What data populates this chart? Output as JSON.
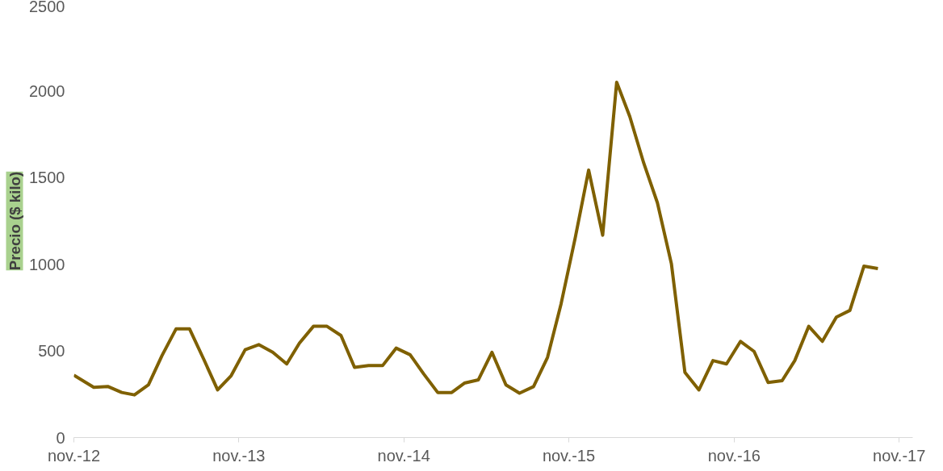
{
  "chart_data": {
    "type": "line",
    "ylabel": "Precio ($ kilo)",
    "x": [
      "2012-11-01",
      "2012-12-15",
      "2013-01-15",
      "2013-02-15",
      "2013-03-15",
      "2013-04-15",
      "2013-05-15",
      "2013-06-15",
      "2013-07-15",
      "2013-08-15",
      "2013-09-15",
      "2013-10-15",
      "2013-11-15",
      "2013-12-15",
      "2014-01-15",
      "2014-02-15",
      "2014-03-15",
      "2014-04-15",
      "2014-05-15",
      "2014-06-15",
      "2014-07-15",
      "2014-08-15",
      "2014-09-15",
      "2014-10-15",
      "2014-11-15",
      "2014-12-15",
      "2015-01-15",
      "2015-02-15",
      "2015-03-15",
      "2015-04-15",
      "2015-05-15",
      "2015-06-15",
      "2015-07-15",
      "2015-08-15",
      "2015-09-15",
      "2015-10-15",
      "2015-11-15",
      "2015-12-15",
      "2016-01-15",
      "2016-02-15",
      "2016-03-15",
      "2016-04-15",
      "2016-05-15",
      "2016-06-15",
      "2016-07-15",
      "2016-08-15",
      "2016-09-15",
      "2016-10-15",
      "2016-11-15",
      "2016-12-15",
      "2017-01-15",
      "2017-02-15",
      "2017-03-15",
      "2017-04-15",
      "2017-05-15",
      "2017-06-15",
      "2017-07-15",
      "2017-08-15",
      "2017-09-15"
    ],
    "series": [
      {
        "color": "#7f6000",
        "values": [
          360,
          290,
          295,
          260,
          246,
          304,
          473,
          627,
          627,
          454,
          275,
          357,
          507,
          536,
          492,
          425,
          545,
          642,
          642,
          589,
          405,
          415,
          415,
          516,
          478,
          367,
          260,
          260,
          314,
          333,
          492,
          304,
          256,
          294,
          463,
          772,
          1149,
          1544,
          1168,
          2051,
          1853,
          1583,
          1356,
          1004,
          376,
          275,
          444,
          425,
          555,
          497,
          318,
          328,
          444,
          642,
          555,
          695,
          734,
          989,
          975
        ]
      }
    ],
    "xlim": [
      "2012-11-01",
      "2017-12-01"
    ],
    "xticks": [
      {
        "value": "2012-11-01",
        "label": "nov.-12"
      },
      {
        "value": "2013-11-01",
        "label": "nov.-13"
      },
      {
        "value": "2014-11-01",
        "label": "nov.-14"
      },
      {
        "value": "2015-11-01",
        "label": "nov.-15"
      },
      {
        "value": "2016-11-01",
        "label": "nov.-16"
      },
      {
        "value": "2017-11-01",
        "label": "nov.-17"
      }
    ],
    "ylim": [
      0,
      2500
    ],
    "yticks": [
      0,
      500,
      1000,
      1500,
      2000,
      2500
    ],
    "grid": false,
    "marker": "none",
    "line_style": "solid"
  }
}
